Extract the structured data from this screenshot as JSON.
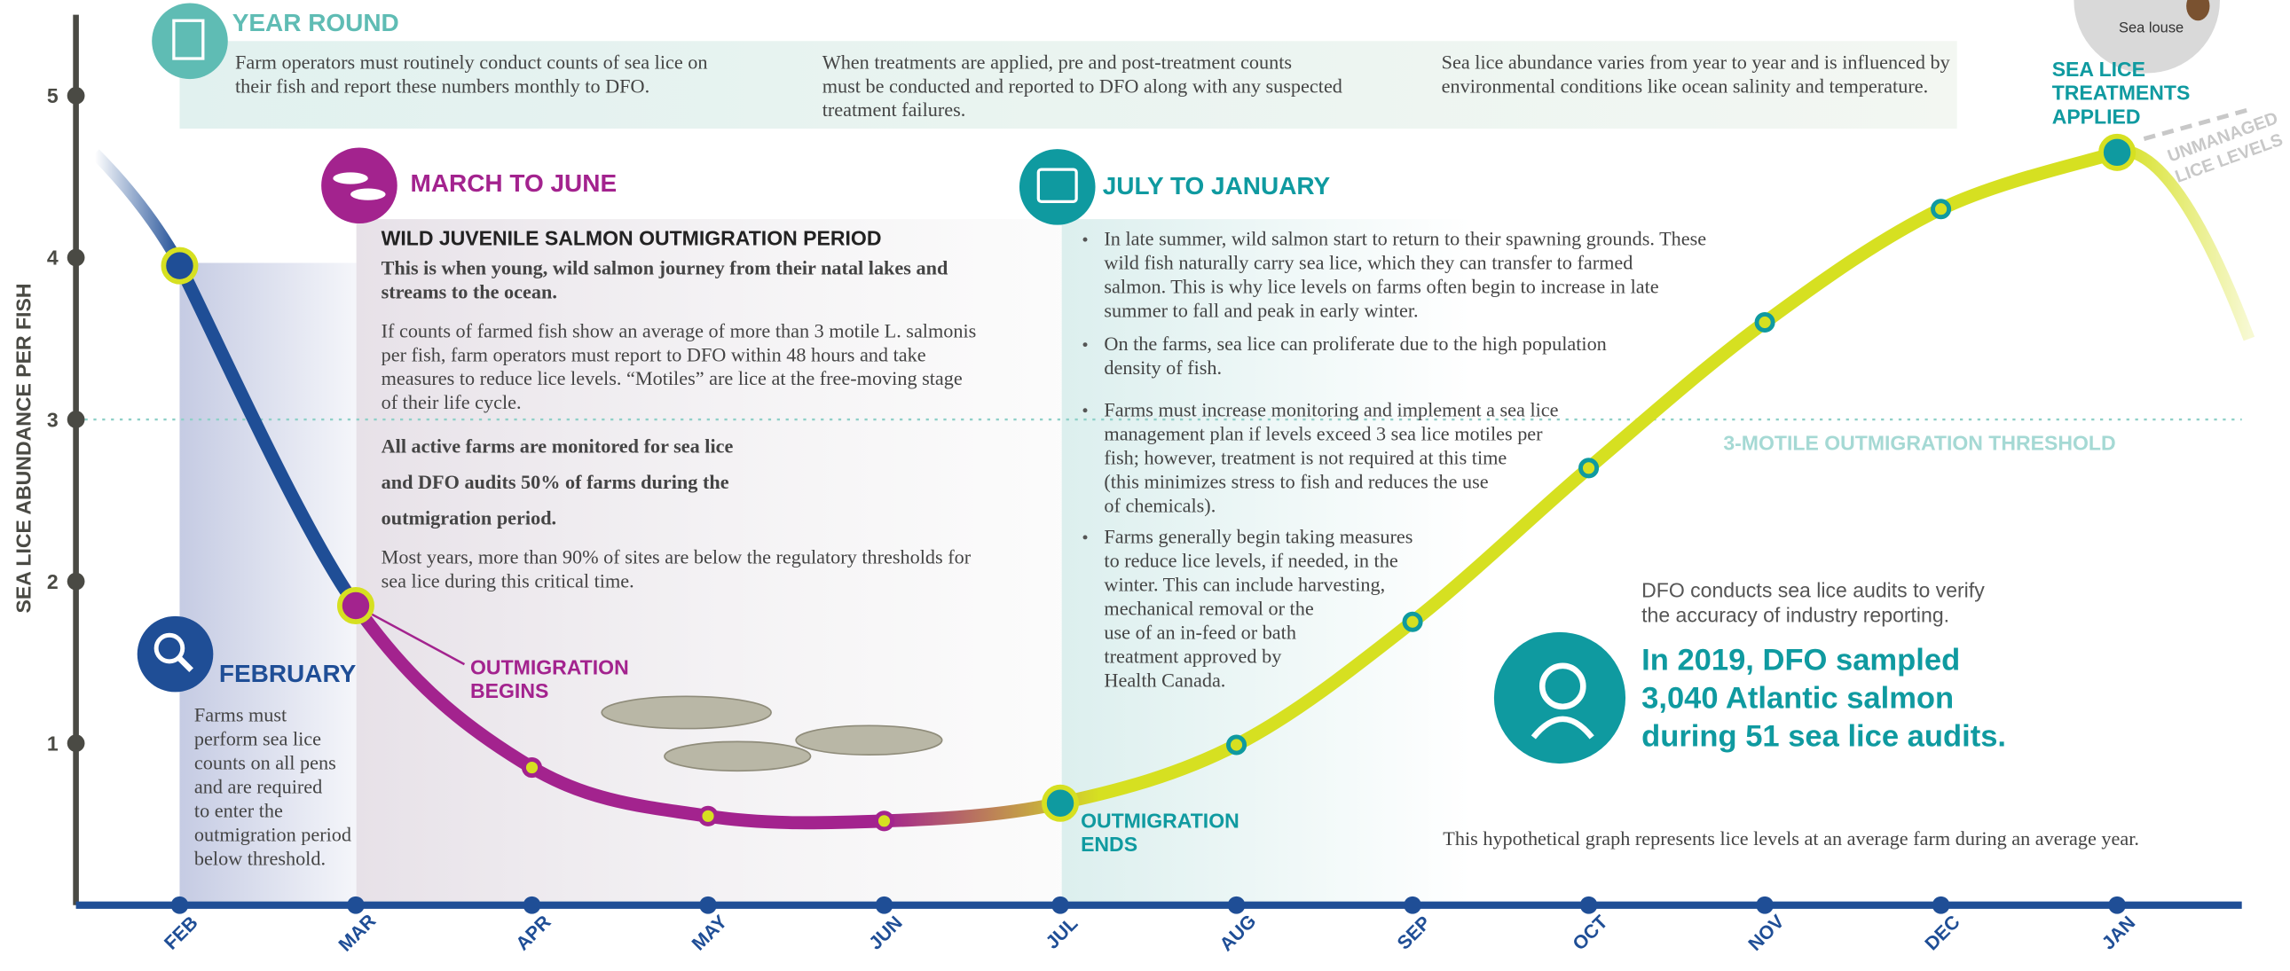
{
  "chart_data": {
    "type": "line",
    "y_label": "SEA LICE ABUNDANCE PER FISH",
    "categories": [
      "FEB",
      "MAR",
      "APR",
      "MAY",
      "JUN",
      "JUL",
      "AUG",
      "SEP",
      "OCT",
      "NOV",
      "DEC",
      "JAN"
    ],
    "series": [
      {
        "values": [
          3.95,
          1.85,
          0.85,
          0.55,
          0.52,
          0.63,
          0.99,
          1.75,
          2.7,
          3.6,
          4.3,
          4.65
        ],
        "color": "#d6e021"
      }
    ],
    "segment_colors": [
      "#1f4e96",
      "#a3238e",
      "#d6e021"
    ],
    "ylim": [
      0,
      5.5
    ],
    "yticks": [
      1,
      2,
      3,
      4,
      5
    ],
    "threshold": {
      "value": 3,
      "label": "3-MOTILE OUTMIGRATION THRESHOLD"
    },
    "year_round": {
      "heading": "YEAR ROUND",
      "columns": [
        [
          "Farm operators must routinely conduct counts of sea lice on",
          "their fish and report these numbers monthly to DFO."
        ],
        [
          "When treatments are applied, pre and post-treatment counts",
          "must be conducted and reported to DFO along with any suspected",
          "treatment failures."
        ],
        [
          "Sea lice abundance varies from year to year and is influenced by",
          "environmental conditions like ocean salinity and temperature."
        ]
      ]
    },
    "sea_louse": "Sea louse",
    "treatments_applied": [
      "SEA LICE",
      "TREATMENTS",
      "APPLIED"
    ],
    "unmanaged": [
      "UNMANAGED",
      "LICE LEVELS"
    ],
    "march_to_june": {
      "heading": "MARCH TO JUNE",
      "subheading": "WILD JUVENILE SALMON OUTMIGRATION PERIOD",
      "intro": [
        "This is when young, wild salmon journey from their natal lakes and",
        "streams to the ocean."
      ],
      "body": [
        "If counts of farmed fish show an average of more than 3 motile L. salmonis",
        "per fish, farm operators must report to DFO within 48 hours and take",
        "measures to reduce lice levels. “Motiles” are lice at the free-moving stage",
        "of their life cycle."
      ],
      "highlight": [
        "All active farms are monitored for sea lice",
        "and DFO audits 50% of farms during the",
        "outmigration period."
      ],
      "note": [
        "Most years, more than 90% of sites are below the regulatory thresholds for",
        "sea lice during this critical time."
      ]
    },
    "february": {
      "heading": "FEBRUARY",
      "body": [
        "Farms must",
        "perform sea lice",
        "counts on all pens",
        "and are required",
        "to enter the",
        "outmigration period",
        "below threshold."
      ]
    },
    "outmigration_begins": [
      "OUTMIGRATION",
      "BEGINS"
    ],
    "july_to_january": {
      "heading": "JULY TO JANUARY",
      "bullets": [
        [
          "In late summer, wild salmon start to return to their spawning grounds. These",
          "wild fish naturally carry sea lice, which they can transfer to farmed",
          "salmon. This is why lice levels on farms often begin to increase in late",
          "summer to fall and peak in early winter."
        ],
        [
          "On the farms, sea lice can proliferate due to the high population",
          "density of fish."
        ],
        [
          "Farms must increase monitoring and implement a sea lice",
          "management plan if levels exceed 3 sea lice motiles per",
          "fish; however, treatment is not required at this time",
          "(this minimizes stress to fish and reduces the use",
          "of chemicals)."
        ],
        [
          "Farms generally begin taking measures",
          "to reduce lice levels, if needed, in the",
          "winter. This can include harvesting,",
          "mechanical removal or the",
          "use of an in-feed or bath",
          "treatment approved by",
          "Health Canada."
        ]
      ]
    },
    "outmigration_ends": [
      "OUTMIGRATION",
      "ENDS"
    ],
    "audits": {
      "intro": [
        "DFO conducts sea lice audits to verify",
        "the accuracy of industry reporting."
      ],
      "highlight": [
        "In 2019, DFO sampled",
        "3,040 Atlantic salmon",
        "during 51 sea lice audits."
      ]
    },
    "footnote": "This hypothetical graph represents lice levels at an average farm during an average year."
  }
}
